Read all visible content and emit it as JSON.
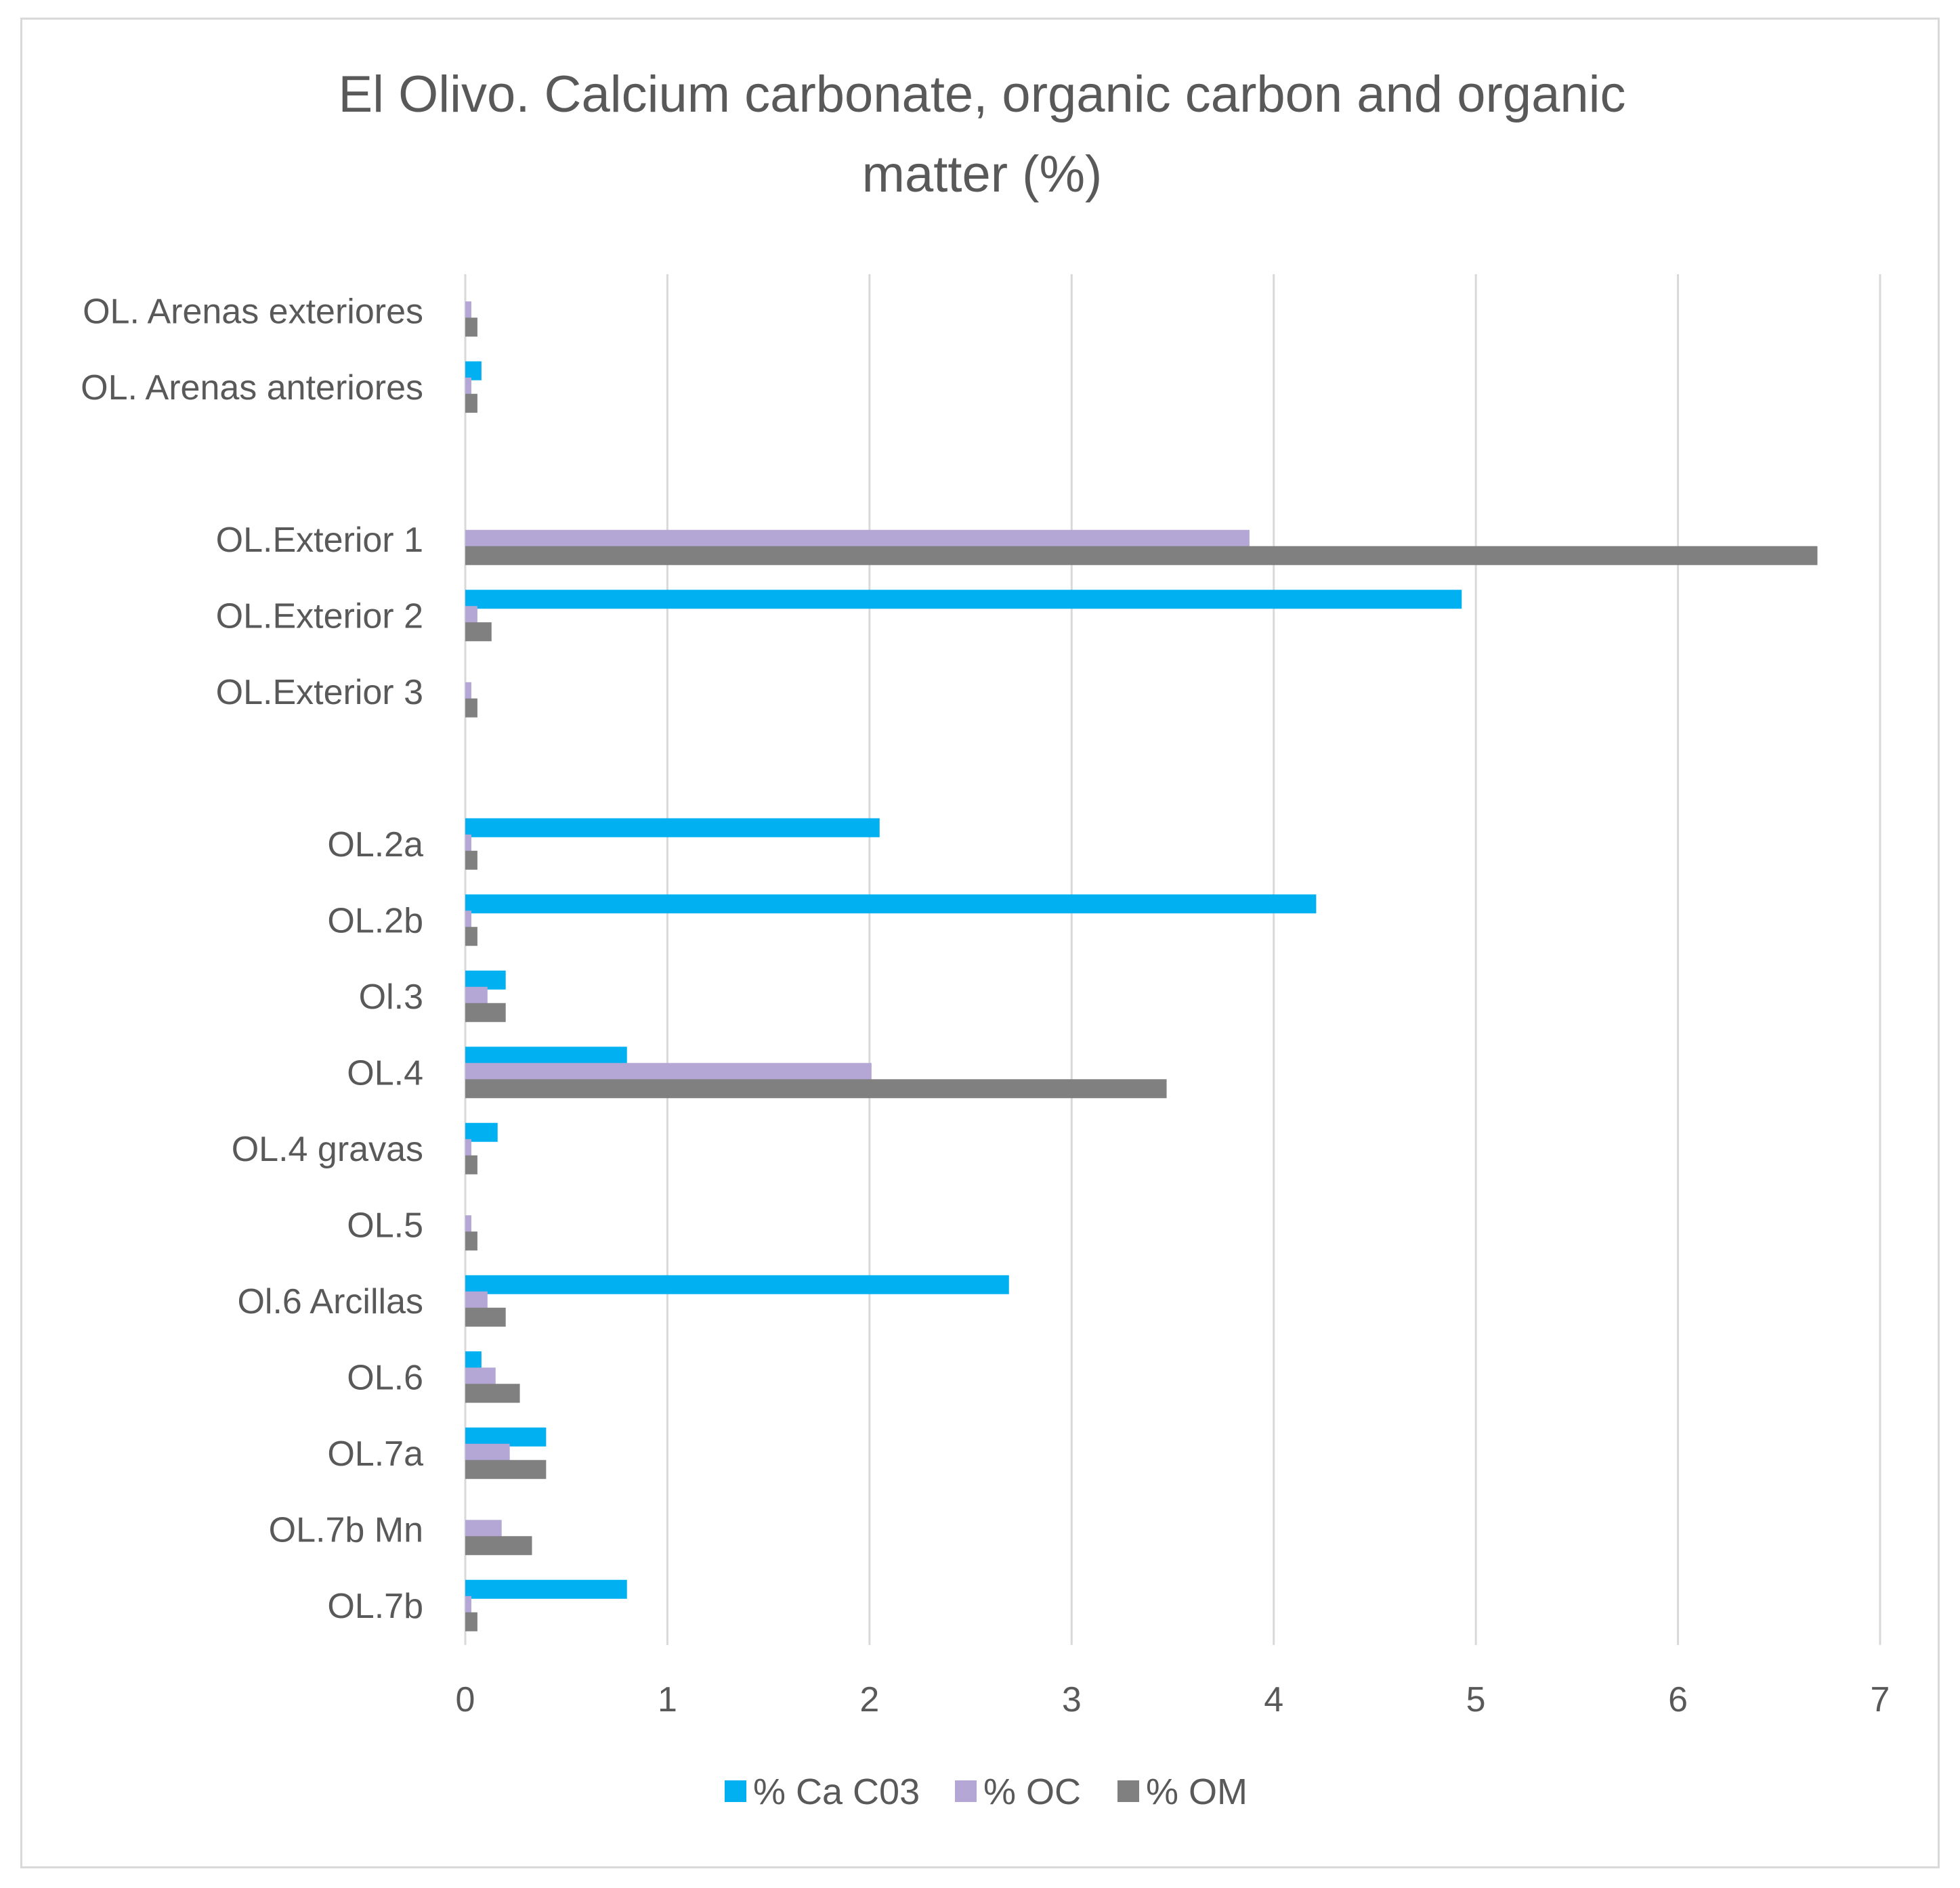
{
  "chart_data": {
    "type": "bar",
    "orientation": "horizontal",
    "title_lines": [
      "El Olivo. Calcium carbonate, organic carbon and organic",
      "matter (%)"
    ],
    "categories": [
      "OL. Arenas exteriores",
      "OL. Arenas anteriores",
      "",
      "OL.Exterior 1",
      "OL.Exterior 2",
      "OL.Exterior 3",
      "",
      "OL.2a",
      "OL.2b",
      "Ol.3",
      "OL.4",
      "OL.4 gravas",
      "OL.5",
      "Ol.6 Arcillas",
      "OL.6",
      "OL.7a",
      "OL.7b Mn",
      "OL.7b"
    ],
    "series": [
      {
        "name": "% Ca C03",
        "color": "#00b0f0",
        "values": [
          0,
          0.08,
          0,
          0,
          4.93,
          0,
          0,
          2.05,
          4.21,
          0.2,
          0.8,
          0.16,
          0,
          2.69,
          0.08,
          0.4,
          0,
          0.8
        ]
      },
      {
        "name": "% OC",
        "color": "#b4a7d6",
        "values": [
          0.03,
          0.03,
          0,
          3.88,
          0.06,
          0.03,
          0,
          0.03,
          0.03,
          0.11,
          2.01,
          0.03,
          0.03,
          0.11,
          0.15,
          0.22,
          0.18,
          0.03
        ]
      },
      {
        "name": "% OM",
        "color": "#808080",
        "values": [
          0.06,
          0.06,
          0,
          6.69,
          0.13,
          0.06,
          0,
          0.06,
          0.06,
          0.2,
          3.47,
          0.06,
          0.06,
          0.2,
          0.27,
          0.4,
          0.33,
          0.06
        ]
      }
    ],
    "xlim": [
      0,
      7
    ],
    "xticks": [
      "0",
      "1",
      "2",
      "3",
      "4",
      "5",
      "6",
      "7"
    ],
    "grid": true,
    "legend_position": "bottom"
  }
}
